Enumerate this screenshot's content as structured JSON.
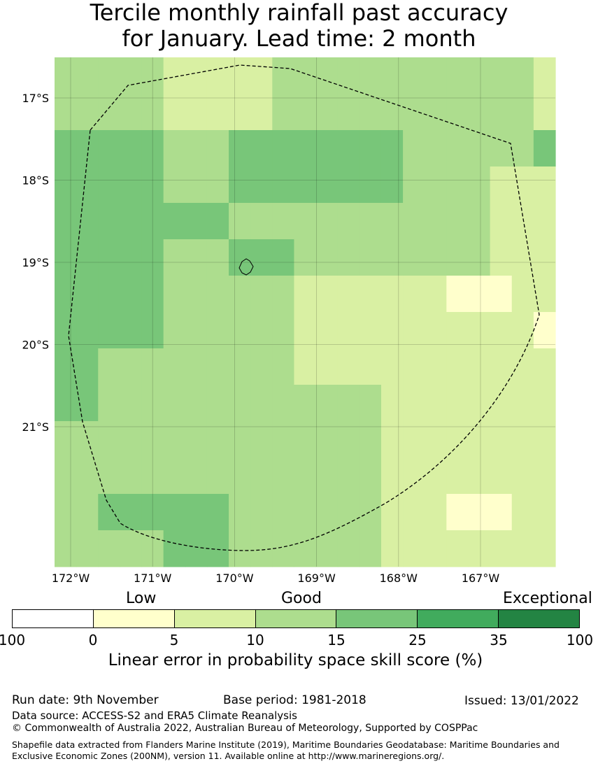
{
  "title": {
    "line1": "Tercile monthly rainfall past accuracy",
    "line2": "for January. Lead time: 2 month"
  },
  "map": {
    "lon_ticks": [
      "172°W",
      "171°W",
      "170°W",
      "169°W",
      "168°W",
      "167°W"
    ],
    "lat_ticks": [
      "17°S",
      "18°S",
      "19°S",
      "20°S",
      "21°S"
    ],
    "grid_lon": [
      -172,
      -171,
      -170,
      -169,
      -168,
      -167
    ],
    "grid_lat": [
      -17,
      -18,
      -19,
      -20,
      -21
    ],
    "cell_levels": [
      [
        3,
        3,
        3,
        3,
        3,
        2,
        2,
        2,
        2,
        2,
        3,
        3,
        3,
        3,
        3,
        3,
        3,
        3,
        3,
        3,
        3,
        3,
        2
      ],
      [
        3,
        3,
        3,
        3,
        3,
        2,
        2,
        2,
        2,
        2,
        3,
        3,
        3,
        3,
        3,
        3,
        3,
        3,
        3,
        3,
        3,
        3,
        2
      ],
      [
        4,
        4,
        4,
        4,
        4,
        3,
        3,
        3,
        4,
        4,
        4,
        4,
        4,
        4,
        4,
        4,
        3,
        3,
        3,
        3,
        3,
        3,
        4
      ],
      [
        4,
        4,
        4,
        4,
        4,
        3,
        3,
        3,
        4,
        4,
        4,
        4,
        4,
        4,
        4,
        4,
        3,
        3,
        3,
        3,
        2,
        2,
        2
      ],
      [
        4,
        4,
        4,
        4,
        4,
        4,
        4,
        4,
        3,
        3,
        3,
        3,
        3,
        3,
        3,
        3,
        3,
        3,
        3,
        3,
        2,
        2,
        2
      ],
      [
        4,
        4,
        4,
        4,
        4,
        3,
        3,
        3,
        4,
        4,
        4,
        3,
        3,
        3,
        3,
        3,
        3,
        3,
        3,
        3,
        2,
        2,
        2
      ],
      [
        4,
        4,
        4,
        4,
        4,
        3,
        3,
        3,
        3,
        3,
        3,
        2,
        2,
        2,
        2,
        2,
        2,
        2,
        1,
        1,
        1,
        2,
        2
      ],
      [
        4,
        4,
        4,
        4,
        4,
        3,
        3,
        3,
        3,
        3,
        3,
        2,
        2,
        2,
        2,
        2,
        2,
        2,
        2,
        2,
        2,
        2,
        1
      ],
      [
        4,
        4,
        3,
        3,
        3,
        3,
        3,
        3,
        3,
        3,
        3,
        2,
        2,
        2,
        2,
        2,
        2,
        2,
        2,
        2,
        2,
        2,
        2
      ],
      [
        4,
        4,
        3,
        3,
        3,
        3,
        3,
        3,
        3,
        3,
        3,
        3,
        3,
        3,
        3,
        2,
        2,
        2,
        2,
        2,
        2,
        2,
        2
      ],
      [
        3,
        3,
        3,
        3,
        3,
        3,
        3,
        3,
        3,
        3,
        3,
        3,
        3,
        3,
        3,
        2,
        2,
        2,
        2,
        2,
        2,
        2,
        2
      ],
      [
        3,
        3,
        3,
        3,
        3,
        3,
        3,
        3,
        3,
        3,
        3,
        3,
        3,
        3,
        3,
        2,
        2,
        2,
        2,
        2,
        2,
        2,
        2
      ],
      [
        3,
        3,
        4,
        4,
        4,
        4,
        4,
        4,
        3,
        3,
        3,
        3,
        3,
        3,
        3,
        2,
        2,
        2,
        1,
        1,
        1,
        2,
        2
      ],
      [
        3,
        3,
        3,
        3,
        3,
        4,
        4,
        4,
        3,
        3,
        3,
        3,
        3,
        3,
        3,
        2,
        2,
        2,
        2,
        2,
        2,
        2,
        2
      ]
    ],
    "colors": [
      "#ffffff",
      "#ffffcc",
      "#d9f0a3",
      "#addd8e",
      "#78c679",
      "#41ab5d",
      "#238443"
    ]
  },
  "legend": {
    "low_label": "Low",
    "good_label": "Good",
    "exceptional_label": "Exceptional",
    "ticks": [
      "100",
      "0",
      "5",
      "10",
      "15",
      "25",
      "35",
      "100"
    ],
    "title": "Linear error in probability space skill score (%)"
  },
  "footer": {
    "run_date": "Run date: 9th November",
    "base_period": "Base period: 1981-2018",
    "issued": "Issued: 13/01/2022",
    "data_source": "Data source: ACCESS-S2 and ERA5 Climate Reanalysis",
    "copyright": "© Commonwealth of Australia 2022, Australian Bureau of Meteorology, Supported by COSPPac",
    "shapefile": "Shapefile data extracted from Flanders Marine Institute (2019), Maritime Boundaries Geodatabase: Maritime Boundaries and Exclusive Economic Zones (200NM), version 11. Available online at http://www.marineregions.org/."
  }
}
